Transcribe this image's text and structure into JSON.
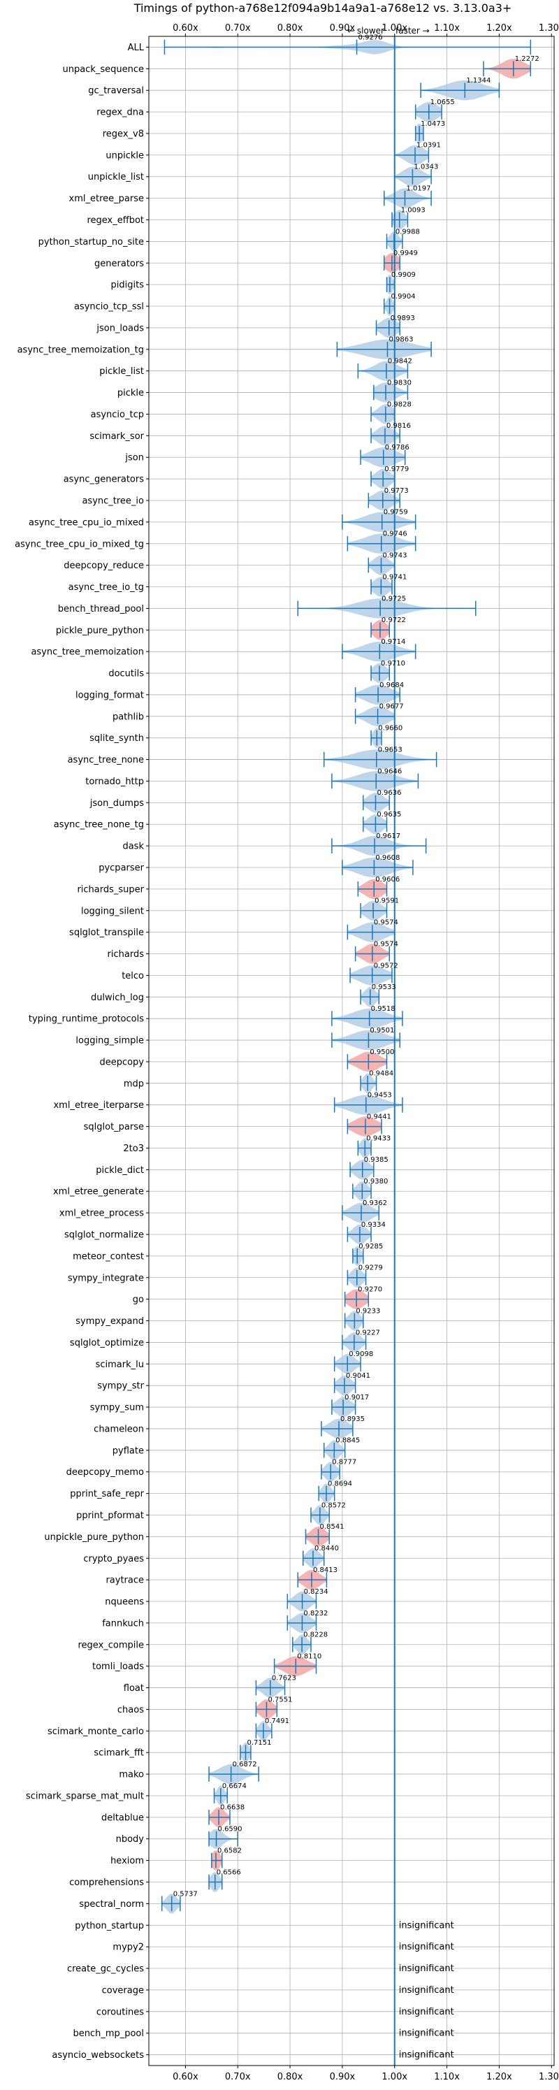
{
  "chart_data": {
    "type": "violin",
    "title": "Timings of python-a768e12f094a9b14a9a1-a768e12 vs. 3.13.0a3+",
    "direction_labels": {
      "slower": "← slower",
      "faster": "faster →"
    },
    "xlim": [
      0.53,
      1.305
    ],
    "xticks": [
      0.6,
      0.7,
      0.8,
      0.9,
      1.0,
      1.1,
      1.2,
      1.3
    ],
    "xtick_labels": [
      "0.60x",
      "0.70x",
      "0.80x",
      "0.90x",
      "1.00x",
      "1.10x",
      "1.20x",
      "1.30x"
    ],
    "grid": true,
    "reference_line": 1.0,
    "insignificant_label": "insignificant",
    "colors": {
      "normal": "#a9c8e3",
      "highlight": "#f4a6a6",
      "line": "#1f77b4",
      "grid": "#b0b0b0"
    },
    "benchmarks": [
      {
        "name": "ALL",
        "value": 0.9276,
        "label": "0.9276",
        "lo": 0.56,
        "hi": 1.26,
        "w": 0.09,
        "shape": "all"
      },
      {
        "name": "unpack_sequence",
        "value": 1.2272,
        "label": "1.2272",
        "lo": 1.17,
        "hi": 1.26,
        "w": 0.03,
        "highlight": true
      },
      {
        "name": "gc_traversal",
        "value": 1.1344,
        "label": "1.1344",
        "lo": 1.05,
        "hi": 1.2,
        "w": 0.05
      },
      {
        "name": "regex_dna",
        "value": 1.0655,
        "label": "1.0655",
        "lo": 1.04,
        "hi": 1.09,
        "w": 0.025
      },
      {
        "name": "regex_v8",
        "value": 1.0473,
        "label": "1.0473",
        "lo": 1.04,
        "hi": 1.055,
        "w": 0.01
      },
      {
        "name": "unpickle",
        "value": 1.0391,
        "label": "1.0391",
        "lo": 1.0,
        "hi": 1.065,
        "w": 0.025
      },
      {
        "name": "unpickle_list",
        "value": 1.0343,
        "label": "1.0343",
        "lo": 1.0,
        "hi": 1.07,
        "w": 0.025
      },
      {
        "name": "xml_etree_parse",
        "value": 1.0197,
        "label": "1.0197",
        "lo": 0.98,
        "hi": 1.07,
        "w": 0.028
      },
      {
        "name": "regex_effbot",
        "value": 1.0093,
        "label": "1.0093",
        "lo": 0.995,
        "hi": 1.025,
        "w": 0.015
      },
      {
        "name": "python_startup_no_site",
        "value": 0.9988,
        "label": "0.9988",
        "lo": 0.985,
        "hi": 1.015,
        "w": 0.012
      },
      {
        "name": "generators",
        "value": 0.9949,
        "label": "0.9949",
        "lo": 0.98,
        "hi": 1.01,
        "w": 0.018,
        "highlight": true
      },
      {
        "name": "pidigits",
        "value": 0.9909,
        "label": "0.9909",
        "lo": 0.985,
        "hi": 1.0,
        "w": 0.008
      },
      {
        "name": "asyncio_tcp_ssl",
        "value": 0.9904,
        "label": "0.9904",
        "lo": 0.98,
        "hi": 1.0,
        "w": 0.008
      },
      {
        "name": "json_loads",
        "value": 0.9893,
        "label": "0.9893",
        "lo": 0.965,
        "hi": 1.01,
        "w": 0.022
      },
      {
        "name": "async_tree_memoization_tg",
        "value": 0.9863,
        "label": "0.9863",
        "lo": 0.89,
        "hi": 1.07,
        "w": 0.065
      },
      {
        "name": "pickle_list",
        "value": 0.9842,
        "label": "0.9842",
        "lo": 0.93,
        "hi": 1.025,
        "w": 0.03
      },
      {
        "name": "pickle",
        "value": 0.983,
        "label": "0.9830",
        "lo": 0.96,
        "hi": 1.025,
        "w": 0.028
      },
      {
        "name": "asyncio_tcp",
        "value": 0.9828,
        "label": "0.9828",
        "lo": 0.955,
        "hi": 1.0,
        "w": 0.02
      },
      {
        "name": "scimark_sor",
        "value": 0.9816,
        "label": "0.9816",
        "lo": 0.955,
        "hi": 1.01,
        "w": 0.022
      },
      {
        "name": "json",
        "value": 0.9786,
        "label": "0.9786",
        "lo": 0.935,
        "hi": 1.02,
        "w": 0.035
      },
      {
        "name": "async_generators",
        "value": 0.9779,
        "label": "0.9779",
        "lo": 0.955,
        "hi": 1.0,
        "w": 0.02
      },
      {
        "name": "async_tree_io",
        "value": 0.9773,
        "label": "0.9773",
        "lo": 0.95,
        "hi": 1.01,
        "w": 0.025
      },
      {
        "name": "async_tree_cpu_io_mixed",
        "value": 0.9759,
        "label": "0.9759",
        "lo": 0.9,
        "hi": 1.04,
        "w": 0.045
      },
      {
        "name": "async_tree_cpu_io_mixed_tg",
        "value": 0.9746,
        "label": "0.9746",
        "lo": 0.91,
        "hi": 1.04,
        "w": 0.045
      },
      {
        "name": "deepcopy_reduce",
        "value": 0.9743,
        "label": "0.9743",
        "lo": 0.95,
        "hi": 1.0,
        "w": 0.02
      },
      {
        "name": "async_tree_io_tg",
        "value": 0.9741,
        "label": "0.9741",
        "lo": 0.955,
        "hi": 0.995,
        "w": 0.02
      },
      {
        "name": "bench_thread_pool",
        "value": 0.9725,
        "label": "0.9725",
        "lo": 0.815,
        "hi": 1.155,
        "w": 0.06
      },
      {
        "name": "pickle_pure_python",
        "value": 0.9722,
        "label": "0.9722",
        "lo": 0.955,
        "hi": 0.99,
        "w": 0.018,
        "highlight": true
      },
      {
        "name": "async_tree_memoization",
        "value": 0.9714,
        "label": "0.9714",
        "lo": 0.9,
        "hi": 1.04,
        "w": 0.045
      },
      {
        "name": "docutils",
        "value": 0.971,
        "label": "0.9710",
        "lo": 0.955,
        "hi": 0.99,
        "w": 0.018
      },
      {
        "name": "logging_format",
        "value": 0.9684,
        "label": "0.9684",
        "lo": 0.925,
        "hi": 1.01,
        "w": 0.035
      },
      {
        "name": "pathlib",
        "value": 0.9677,
        "label": "0.9677",
        "lo": 0.925,
        "hi": 1.0,
        "w": 0.03
      },
      {
        "name": "sqlite_synth",
        "value": 0.966,
        "label": "0.9660",
        "lo": 0.955,
        "hi": 0.975,
        "w": 0.01
      },
      {
        "name": "async_tree_none",
        "value": 0.9653,
        "label": "0.9653",
        "lo": 0.865,
        "hi": 1.08,
        "w": 0.06
      },
      {
        "name": "tornado_http",
        "value": 0.9646,
        "label": "0.9646",
        "lo": 0.88,
        "hi": 1.045,
        "w": 0.05
      },
      {
        "name": "json_dumps",
        "value": 0.9636,
        "label": "0.9636",
        "lo": 0.94,
        "hi": 0.99,
        "w": 0.022
      },
      {
        "name": "async_tree_none_tg",
        "value": 0.9635,
        "label": "0.9635",
        "lo": 0.94,
        "hi": 0.985,
        "w": 0.02
      },
      {
        "name": "dask",
        "value": 0.9617,
        "label": "0.9617",
        "lo": 0.88,
        "hi": 1.06,
        "w": 0.04
      },
      {
        "name": "pycparser",
        "value": 0.9608,
        "label": "0.9608",
        "lo": 0.9,
        "hi": 1.035,
        "w": 0.045
      },
      {
        "name": "richards_super",
        "value": 0.9606,
        "label": "0.9606",
        "lo": 0.93,
        "hi": 0.985,
        "w": 0.025,
        "highlight": true
      },
      {
        "name": "logging_silent",
        "value": 0.9591,
        "label": "0.9591",
        "lo": 0.935,
        "hi": 0.985,
        "w": 0.022
      },
      {
        "name": "sqlglot_transpile",
        "value": 0.9574,
        "label": "0.9574",
        "lo": 0.91,
        "hi": 1.0,
        "w": 0.035
      },
      {
        "name": "richards",
        "value": 0.9574,
        "label": "0.9574",
        "lo": 0.925,
        "hi": 0.99,
        "w": 0.025,
        "highlight": true
      },
      {
        "name": "telco",
        "value": 0.9572,
        "label": "0.9572",
        "lo": 0.915,
        "hi": 0.995,
        "w": 0.035
      },
      {
        "name": "dulwich_log",
        "value": 0.9533,
        "label": "0.9533",
        "lo": 0.935,
        "hi": 0.97,
        "w": 0.015
      },
      {
        "name": "typing_runtime_protocols",
        "value": 0.9518,
        "label": "0.9518",
        "lo": 0.88,
        "hi": 1.015,
        "w": 0.045
      },
      {
        "name": "logging_simple",
        "value": 0.9501,
        "label": "0.9501",
        "lo": 0.88,
        "hi": 1.01,
        "w": 0.045
      },
      {
        "name": "deepcopy",
        "value": 0.95,
        "label": "0.9500",
        "lo": 0.91,
        "hi": 0.985,
        "w": 0.03,
        "highlight": true
      },
      {
        "name": "mdp",
        "value": 0.9484,
        "label": "0.9484",
        "lo": 0.935,
        "hi": 0.965,
        "w": 0.012
      },
      {
        "name": "xml_etree_iterparse",
        "value": 0.9453,
        "label": "0.9453",
        "lo": 0.885,
        "hi": 1.015,
        "w": 0.045
      },
      {
        "name": "sqlglot_parse",
        "value": 0.9441,
        "label": "0.9441",
        "lo": 0.91,
        "hi": 0.975,
        "w": 0.03,
        "highlight": true
      },
      {
        "name": "2to3",
        "value": 0.9433,
        "label": "0.9433",
        "lo": 0.93,
        "hi": 0.955,
        "w": 0.012
      },
      {
        "name": "pickle_dict",
        "value": 0.9385,
        "label": "0.9385",
        "lo": 0.915,
        "hi": 0.96,
        "w": 0.02
      },
      {
        "name": "xml_etree_generate",
        "value": 0.938,
        "label": "0.9380",
        "lo": 0.92,
        "hi": 0.955,
        "w": 0.015
      },
      {
        "name": "xml_etree_process",
        "value": 0.9362,
        "label": "0.9362",
        "lo": 0.9,
        "hi": 0.97,
        "w": 0.028
      },
      {
        "name": "sqlglot_normalize",
        "value": 0.9334,
        "label": "0.9334",
        "lo": 0.91,
        "hi": 0.955,
        "w": 0.018
      },
      {
        "name": "meteor_contest",
        "value": 0.9285,
        "label": "0.9285",
        "lo": 0.92,
        "hi": 0.94,
        "w": 0.01
      },
      {
        "name": "sympy_integrate",
        "value": 0.9279,
        "label": "0.9279",
        "lo": 0.91,
        "hi": 0.945,
        "w": 0.015
      },
      {
        "name": "go",
        "value": 0.927,
        "label": "0.9270",
        "lo": 0.905,
        "hi": 0.95,
        "w": 0.022,
        "highlight": true
      },
      {
        "name": "sympy_expand",
        "value": 0.9233,
        "label": "0.9233",
        "lo": 0.905,
        "hi": 0.94,
        "w": 0.015
      },
      {
        "name": "sqlglot_optimize",
        "value": 0.9227,
        "label": "0.9227",
        "lo": 0.9,
        "hi": 0.945,
        "w": 0.018
      },
      {
        "name": "scimark_lu",
        "value": 0.9098,
        "label": "0.9098",
        "lo": 0.885,
        "hi": 0.935,
        "w": 0.02
      },
      {
        "name": "sympy_str",
        "value": 0.9041,
        "label": "0.9041",
        "lo": 0.885,
        "hi": 0.925,
        "w": 0.018
      },
      {
        "name": "sympy_sum",
        "value": 0.9017,
        "label": "0.9017",
        "lo": 0.88,
        "hi": 0.925,
        "w": 0.02
      },
      {
        "name": "chameleon",
        "value": 0.8935,
        "label": "0.8935",
        "lo": 0.86,
        "hi": 0.92,
        "w": 0.025
      },
      {
        "name": "pyflate",
        "value": 0.8845,
        "label": "0.8845",
        "lo": 0.865,
        "hi": 0.905,
        "w": 0.015
      },
      {
        "name": "deepcopy_memo",
        "value": 0.8777,
        "label": "0.8777",
        "lo": 0.86,
        "hi": 0.895,
        "w": 0.015
      },
      {
        "name": "pprint_safe_repr",
        "value": 0.8694,
        "label": "0.8694",
        "lo": 0.855,
        "hi": 0.885,
        "w": 0.012
      },
      {
        "name": "pprint_pformat",
        "value": 0.8572,
        "label": "0.8572",
        "lo": 0.84,
        "hi": 0.875,
        "w": 0.014
      },
      {
        "name": "unpickle_pure_python",
        "value": 0.8541,
        "label": "0.8541",
        "lo": 0.83,
        "hi": 0.875,
        "w": 0.02,
        "highlight": true
      },
      {
        "name": "crypto_pyaes",
        "value": 0.844,
        "label": "0.8440",
        "lo": 0.825,
        "hi": 0.865,
        "w": 0.016
      },
      {
        "name": "raytrace",
        "value": 0.8413,
        "label": "0.8413",
        "lo": 0.815,
        "hi": 0.87,
        "w": 0.022,
        "highlight": true
      },
      {
        "name": "nqueens",
        "value": 0.8234,
        "label": "0.8234",
        "lo": 0.795,
        "hi": 0.85,
        "w": 0.02
      },
      {
        "name": "fannkuch",
        "value": 0.8232,
        "label": "0.8232",
        "lo": 0.795,
        "hi": 0.85,
        "w": 0.022
      },
      {
        "name": "regex_compile",
        "value": 0.8228,
        "label": "0.8228",
        "lo": 0.805,
        "hi": 0.84,
        "w": 0.014
      },
      {
        "name": "tomli_loads",
        "value": 0.811,
        "label": "0.8110",
        "lo": 0.77,
        "hi": 0.85,
        "w": 0.03,
        "highlight": true
      },
      {
        "name": "float",
        "value": 0.7623,
        "label": "0.7623",
        "lo": 0.735,
        "hi": 0.79,
        "w": 0.02
      },
      {
        "name": "chaos",
        "value": 0.7551,
        "label": "0.7551",
        "lo": 0.735,
        "hi": 0.775,
        "w": 0.018,
        "highlight": true
      },
      {
        "name": "scimark_monte_carlo",
        "value": 0.7491,
        "label": "0.7491",
        "lo": 0.735,
        "hi": 0.765,
        "w": 0.012
      },
      {
        "name": "scimark_fft",
        "value": 0.7151,
        "label": "0.7151",
        "lo": 0.705,
        "hi": 0.725,
        "w": 0.01
      },
      {
        "name": "mako",
        "value": 0.6872,
        "label": "0.6872",
        "lo": 0.645,
        "hi": 0.74,
        "w": 0.03
      },
      {
        "name": "scimark_sparse_mat_mult",
        "value": 0.6674,
        "label": "0.6674",
        "lo": 0.655,
        "hi": 0.68,
        "w": 0.01
      },
      {
        "name": "deltablue",
        "value": 0.6638,
        "label": "0.6638",
        "lo": 0.645,
        "hi": 0.685,
        "w": 0.016,
        "highlight": true
      },
      {
        "name": "nbody",
        "value": 0.659,
        "label": "0.6590",
        "lo": 0.645,
        "hi": 0.7,
        "w": 0.018
      },
      {
        "name": "hexiom",
        "value": 0.6582,
        "label": "0.6582",
        "lo": 0.65,
        "hi": 0.67,
        "w": 0.012,
        "highlight": true
      },
      {
        "name": "comprehensions",
        "value": 0.6566,
        "label": "0.6566",
        "lo": 0.645,
        "hi": 0.67,
        "w": 0.012
      },
      {
        "name": "spectral_norm",
        "value": 0.5737,
        "label": "0.5737",
        "lo": 0.555,
        "hi": 0.59,
        "w": 0.014
      },
      {
        "name": "python_startup",
        "insignificant": true
      },
      {
        "name": "mypy2",
        "insignificant": true
      },
      {
        "name": "create_gc_cycles",
        "insignificant": true
      },
      {
        "name": "coverage",
        "insignificant": true
      },
      {
        "name": "coroutines",
        "insignificant": true
      },
      {
        "name": "bench_mp_pool",
        "insignificant": true
      },
      {
        "name": "asyncio_websockets",
        "insignificant": true
      }
    ]
  }
}
